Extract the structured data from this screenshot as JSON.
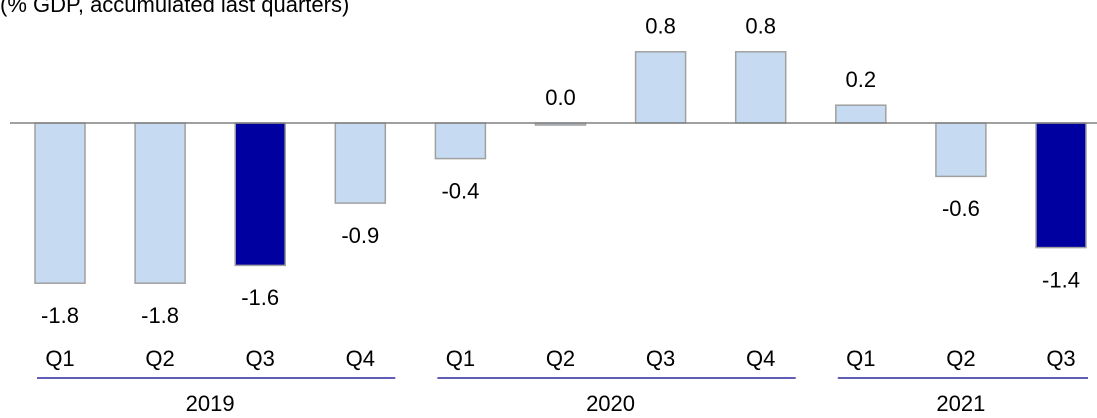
{
  "chart_data": {
    "type": "bar",
    "subtitle": "(% GDP, accumulated last quarters)",
    "categories": [
      "Q1",
      "Q2",
      "Q3",
      "Q4",
      "Q1",
      "Q2",
      "Q3",
      "Q4",
      "Q1",
      "Q2",
      "Q3"
    ],
    "groups": [
      {
        "label": "2019",
        "count": 4
      },
      {
        "label": "2020",
        "count": 4
      },
      {
        "label": "2021",
        "count": 3
      }
    ],
    "values": [
      -1.8,
      -1.8,
      -1.6,
      -0.9,
      -0.4,
      0.0,
      0.8,
      0.8,
      0.2,
      -0.6,
      -1.4
    ],
    "value_labels": [
      "-1.8",
      "-1.8",
      "-1.6",
      "-0.9",
      "-0.4",
      "0.0",
      "0.8",
      "0.8",
      "0.2",
      "-0.6",
      "-1.4"
    ],
    "colors": [
      "#c6daf2",
      "#c6daf2",
      "#0000a0",
      "#c6daf2",
      "#c6daf2",
      "#c6daf2",
      "#c6daf2",
      "#c6daf2",
      "#c6daf2",
      "#c6daf2",
      "#0000a0"
    ],
    "ylim": [
      -2,
      1
    ]
  }
}
